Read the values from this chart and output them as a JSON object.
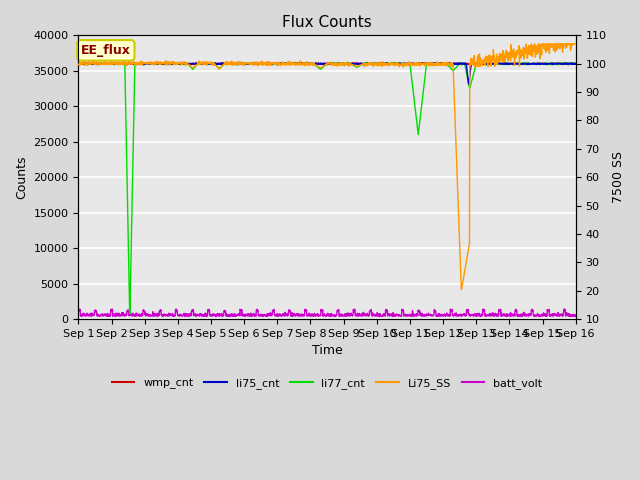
{
  "title": "Flux Counts",
  "ylabel_left": "Counts",
  "ylabel_right": "7500 SS",
  "xlabel": "Time",
  "ylim_left": [
    0,
    40000
  ],
  "ylim_right": [
    10,
    110
  ],
  "background_color": "#d9d9d9",
  "plot_bg_color": "#e8e8e8",
  "annotation_text": "EE_flux",
  "annotation_color": "#8b0000",
  "annotation_bg": "#ffffcc",
  "annotation_border": "#cccc00",
  "series": {
    "wmp_cnt": {
      "color": "#cc0000",
      "lw": 1.0
    },
    "li75_cnt": {
      "color": "#0000cc",
      "lw": 1.0
    },
    "li77_cnt": {
      "color": "#00dd00",
      "lw": 1.0
    },
    "Li75_SS": {
      "color": "#ff9900",
      "lw": 1.0
    },
    "batt_volt": {
      "color": "#cc00cc",
      "lw": 1.0
    }
  },
  "figsize": [
    6.4,
    4.8
  ],
  "dpi": 100
}
